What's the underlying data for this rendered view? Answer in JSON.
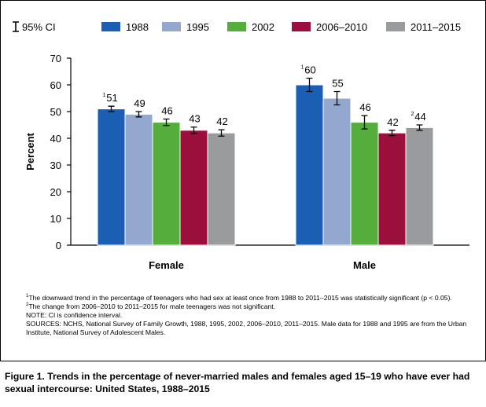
{
  "chart_data": {
    "type": "bar",
    "title": "",
    "xlabel": "",
    "ylabel": "Percent",
    "ylim": [
      0,
      70
    ],
    "yticks": [
      0,
      10,
      20,
      30,
      40,
      50,
      60,
      70
    ],
    "grid": false,
    "legend_position": "top",
    "legend_ci_label": "95% CI",
    "categories": [
      "Female",
      "Male"
    ],
    "series": [
      {
        "name": "1988",
        "color": "#1b5fb4",
        "values": [
          51,
          60
        ],
        "ci_low": [
          50,
          57.5
        ],
        "ci_high": [
          52,
          62.5
        ],
        "labels": [
          "51",
          "60"
        ],
        "label_notes": [
          "1",
          "1"
        ]
      },
      {
        "name": "1995",
        "color": "#94a8cf",
        "values": [
          49,
          55
        ],
        "ci_low": [
          48,
          52.5
        ],
        "ci_high": [
          50,
          57.5
        ],
        "labels": [
          "49",
          "55"
        ],
        "label_notes": [
          "",
          ""
        ]
      },
      {
        "name": "2002",
        "color": "#55ae3b",
        "values": [
          46,
          46
        ],
        "ci_low": [
          44.8,
          43.5
        ],
        "ci_high": [
          47.2,
          48.5
        ],
        "labels": [
          "46",
          "46"
        ],
        "label_notes": [
          "",
          ""
        ]
      },
      {
        "name": "2006–2010",
        "color": "#9b0f3c",
        "values": [
          43,
          42
        ],
        "ci_low": [
          41.8,
          41
        ],
        "ci_high": [
          44.2,
          43
        ],
        "labels": [
          "43",
          "42"
        ],
        "label_notes": [
          "",
          ""
        ]
      },
      {
        "name": "2011–2015",
        "color": "#9a9b9d",
        "values": [
          42,
          44
        ],
        "ci_low": [
          40.8,
          43
        ],
        "ci_high": [
          43.2,
          45
        ],
        "labels": [
          "42",
          "44"
        ],
        "label_notes": [
          "",
          "2"
        ]
      }
    ]
  },
  "footnotes": {
    "note1_mark": "1",
    "note1": "The downward trend in the percentage of teenagers who had sex at least once from 1988 to 2011–2015 was statistically significant (p < 0.05).",
    "note2_mark": "2",
    "note2": "The change from 2006–2010 to 2011–2015 for male teenagers was not significant.",
    "note3": "NOTE: CI is confidence interval.",
    "sources": "SOURCES: NCHS, National Survey of Family Growth, 1988, 1995, 2002, 2006–2010, 2011–2015. Male data for 1988 and 1995 are from the Urban Institute, National Survey of Adolescent Males."
  },
  "caption": {
    "figure_label": "Figure 1.",
    "text": "Trends in the percentage of never-married males and females aged 15–19 who have ever had sexual intercourse: United States, 1988–2015"
  }
}
